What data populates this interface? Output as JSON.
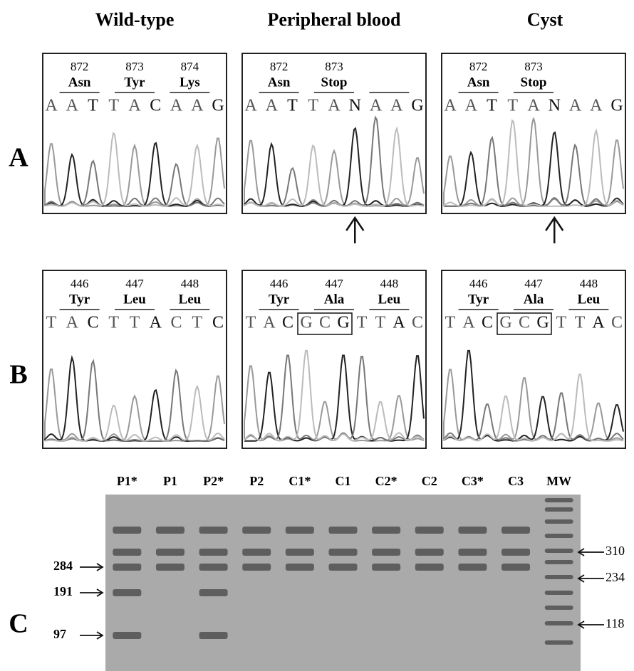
{
  "column_headers": [
    "Wild-type",
    "Peripheral blood",
    "Cyst"
  ],
  "rows": [
    {
      "label": "A",
      "panels": [
        {
          "codons": [
            {
              "number": 872,
              "amino_acid": "Asn"
            },
            {
              "number": 873,
              "amino_acid": "Tyr"
            },
            {
              "number": 874,
              "amino_acid": "Lys"
            }
          ],
          "bases": [
            "A",
            "A",
            "T",
            "T",
            "A",
            "C",
            "A",
            "A",
            "G"
          ]
        },
        {
          "codons": [
            {
              "number": 872,
              "amino_acid": "Asn"
            },
            {
              "number": 873,
              "amino_acid": "Stop"
            }
          ],
          "bases": [
            "A",
            "A",
            "T",
            "T",
            "A",
            "N",
            "A",
            "A",
            "G"
          ]
        },
        {
          "codons": [
            {
              "number": 872,
              "amino_acid": "Asn"
            },
            {
              "number": 873,
              "amino_acid": "Stop"
            }
          ],
          "bases": [
            "A",
            "A",
            "T",
            "T",
            "A",
            "N",
            "A",
            "A",
            "G"
          ]
        }
      ]
    },
    {
      "label": "B",
      "panels": [
        {
          "codons": [
            {
              "number": 446,
              "amino_acid": "Tyr"
            },
            {
              "number": 447,
              "amino_acid": "Leu"
            },
            {
              "number": 448,
              "amino_acid": "Leu"
            }
          ],
          "bases": [
            "T",
            "A",
            "C",
            "T",
            "T",
            "A",
            "C",
            "T",
            "C"
          ]
        },
        {
          "codons": [
            {
              "number": 446,
              "amino_acid": "Tyr"
            },
            {
              "number": 447,
              "amino_acid": "Ala"
            },
            {
              "number": 448,
              "amino_acid": "Leu"
            }
          ],
          "bases": [
            "T",
            "A",
            "C",
            "G",
            "C",
            "G",
            "T",
            "T",
            "A",
            "C"
          ]
        },
        {
          "codons": [
            {
              "number": 446,
              "amino_acid": "Tyr"
            },
            {
              "number": 447,
              "amino_acid": "Ala"
            },
            {
              "number": 448,
              "amino_acid": "Leu"
            }
          ],
          "bases": [
            "T",
            "A",
            "C",
            "G",
            "C",
            "G",
            "T",
            "T",
            "A",
            "C"
          ]
        }
      ]
    }
  ],
  "gel": {
    "label": "C",
    "lanes": [
      "P1*",
      "P1",
      "P2*",
      "P2",
      "C1*",
      "C1",
      "C2*",
      "C2",
      "C3*",
      "C3",
      "MW"
    ],
    "left_markers": [
      "284",
      "191",
      "97"
    ],
    "right_markers": [
      "310",
      "234",
      "118"
    ]
  }
}
